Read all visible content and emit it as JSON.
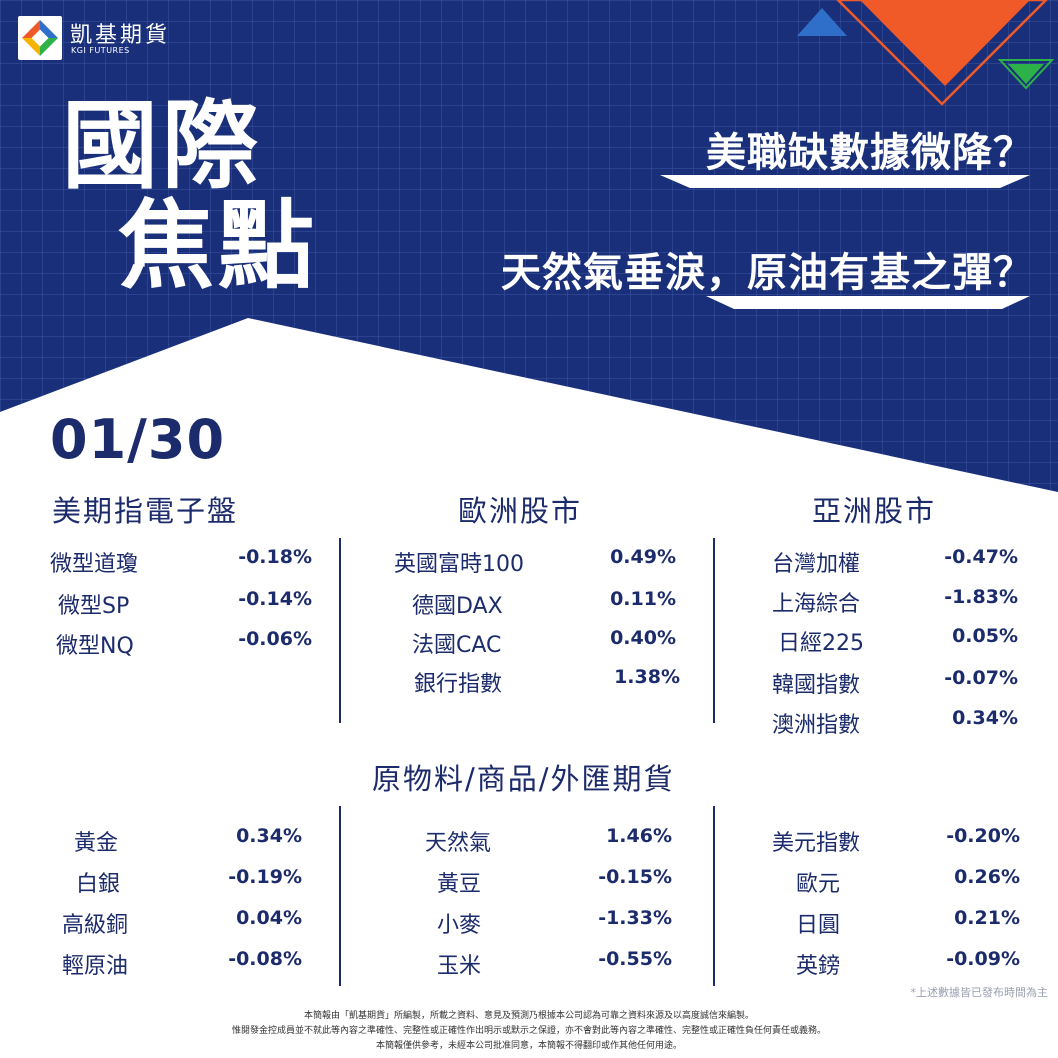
{
  "brand": {
    "name": "凱基期貨",
    "sub": "KGI FUTURES"
  },
  "title": {
    "line1": "國際",
    "line2": "焦點"
  },
  "headlines": [
    "美職缺數據微降？",
    "天然氣垂淚，原油有基之彈？"
  ],
  "date": "01/30",
  "sections": {
    "us": {
      "title": "美期指電子盤",
      "rows": [
        {
          "name": "微型道瓊",
          "value": "-0.18%"
        },
        {
          "name": "微型SP",
          "value": "-0.14%"
        },
        {
          "name": "微型NQ",
          "value": "-0.06%"
        }
      ]
    },
    "europe": {
      "title": "歐洲股市",
      "rows": [
        {
          "name": "英國富時100",
          "value": "0.49%"
        },
        {
          "name": "德國DAX",
          "value": "0.11%"
        },
        {
          "name": "法國CAC",
          "value": "0.40%"
        },
        {
          "name": "銀行指數",
          "value": "1.38%"
        }
      ]
    },
    "asia": {
      "title": "亞洲股市",
      "rows": [
        {
          "name": "台灣加權",
          "value": "-0.47%"
        },
        {
          "name": "上海綜合",
          "value": "-1.83%"
        },
        {
          "name": "日經225",
          "value": "0.05%"
        },
        {
          "name": "韓國指數",
          "value": "-0.07%"
        },
        {
          "name": "澳洲指數",
          "value": "0.34%"
        }
      ]
    },
    "commodities": {
      "title": "原物料/商品/外匯期貨",
      "metals": [
        {
          "name": "黃金",
          "value": "0.34%"
        },
        {
          "name": "白銀",
          "value": "-0.19%"
        },
        {
          "name": "高級銅",
          "value": "0.04%"
        },
        {
          "name": "輕原油",
          "value": "-0.08%"
        }
      ],
      "agri": [
        {
          "name": "天然氣",
          "value": "1.46%"
        },
        {
          "name": "黃豆",
          "value": "-0.15%"
        },
        {
          "name": "小麥",
          "value": "-1.33%"
        },
        {
          "name": "玉米",
          "value": "-0.55%"
        }
      ],
      "fx": [
        {
          "name": "美元指數",
          "value": "-0.20%"
        },
        {
          "name": "歐元",
          "value": "0.26%"
        },
        {
          "name": "日圓",
          "value": "0.21%"
        },
        {
          "name": "英鎊",
          "value": "-0.09%"
        }
      ]
    }
  },
  "note": "*上述數據皆已發布時間為主",
  "disclaimer": [
    "本簡報由「凱基期貨」所編製，所載之資料、意見及預測乃根據本公司認為可靠之資料來源及以高度誠信來編製。",
    "惟閱發金控成員並不就此等內容之準確性、完整性或正確性作出明示或默示之保證，亦不會對此等內容之準確性、完整性或正確性負任何責任或義務。",
    "本簡報僅供參考，未經本公司批准同意，本簡報不得翻印或作其他任何用途。"
  ],
  "colors": {
    "navy": "#1a2f7a",
    "text": "#1c2b6b",
    "orange": "#f05a28",
    "green": "#2db24a",
    "blue": "#2f6fc9"
  }
}
